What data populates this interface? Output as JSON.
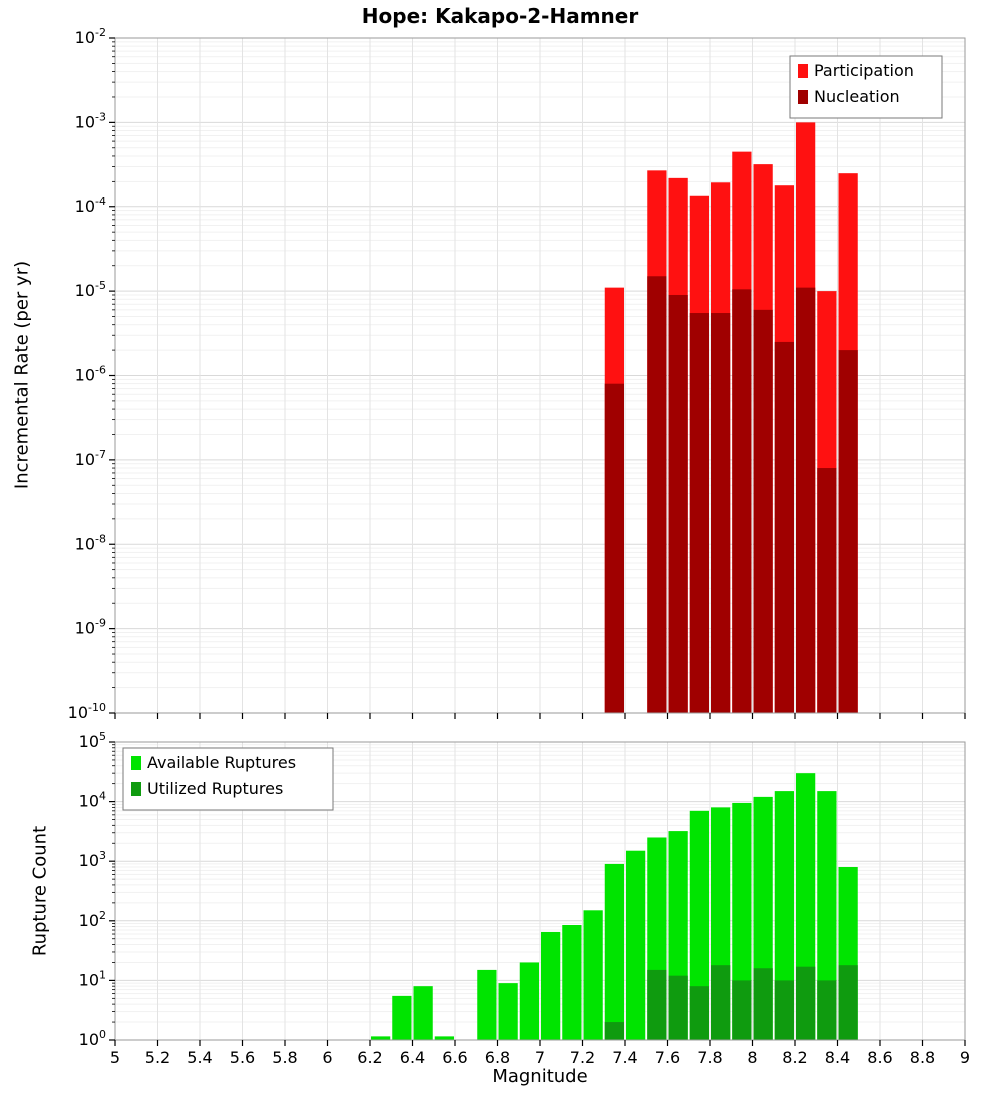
{
  "title": "Hope: Kakapo-2-Hamner",
  "chart_data": [
    {
      "type": "bar",
      "subplot": "incremental-rate",
      "ylabel": "Incremental Rate (per yr)",
      "xlim": [
        5,
        9
      ],
      "ylim": [
        1e-10,
        0.01
      ],
      "xtick_step": 0.2,
      "bar_width": 0.1,
      "grid": true,
      "legend_position": "top-right",
      "series": [
        {
          "name": "Participation",
          "color": "#ff1111",
          "x": [
            7.35,
            7.55,
            7.65,
            7.75,
            7.85,
            7.95,
            8.05,
            8.15,
            8.25,
            8.35,
            8.45
          ],
          "values": [
            1.1e-05,
            0.00027,
            0.00022,
            0.000135,
            0.000195,
            0.00045,
            0.00032,
            0.00018,
            0.001,
            1e-05,
            0.00025
          ]
        },
        {
          "name": "Nucleation",
          "color": "#a00000",
          "x": [
            7.35,
            7.55,
            7.65,
            7.75,
            7.85,
            7.95,
            8.05,
            8.15,
            8.25,
            8.35,
            8.45
          ],
          "values": [
            8e-07,
            1.5e-05,
            9e-06,
            5.5e-06,
            5.5e-06,
            1.05e-05,
            6e-06,
            2.5e-06,
            1.1e-05,
            8e-08,
            2e-06
          ]
        }
      ]
    },
    {
      "type": "bar",
      "subplot": "rupture-count",
      "ylabel": "Rupture Count",
      "xlabel": "Magnitude",
      "xlim": [
        5,
        9
      ],
      "ylim": [
        1,
        100000.0
      ],
      "xtick_step": 0.2,
      "bar_width": 0.1,
      "grid": true,
      "legend_position": "top-left",
      "series": [
        {
          "name": "Available Ruptures",
          "color": "#00e400",
          "x": [
            6.25,
            6.35,
            6.45,
            6.55,
            6.75,
            6.85,
            6.95,
            7.05,
            7.15,
            7.25,
            7.35,
            7.45,
            7.55,
            7.65,
            7.75,
            7.85,
            7.95,
            8.05,
            8.15,
            8.25,
            8.35,
            8.45
          ],
          "values": [
            1.15,
            5.5,
            8,
            1.15,
            15,
            9,
            20,
            65,
            85,
            150,
            900,
            1500,
            2500,
            3200,
            7000,
            8000,
            9500,
            12000,
            15000,
            30000,
            15000,
            800
          ]
        },
        {
          "name": "Utilized Ruptures",
          "color": "#0f9b0f",
          "x": [
            7.35,
            7.55,
            7.65,
            7.75,
            7.85,
            7.95,
            8.05,
            8.15,
            8.25,
            8.35,
            8.45
          ],
          "values": [
            2,
            15,
            12,
            8,
            18,
            10,
            16,
            10,
            17,
            10,
            18
          ]
        }
      ]
    }
  ]
}
